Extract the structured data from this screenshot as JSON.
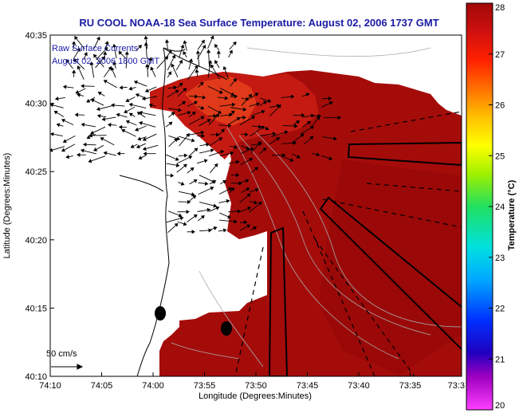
{
  "title": "RU COOL  NOAA-18  Sea Surface Temperature:  August 02, 2006 1737 GMT",
  "annotations": {
    "line1": "Raw Surface Currents",
    "line2": "August 02, 2006 1800 GMT",
    "scale_label": "50 cm/s"
  },
  "colors": {
    "title": "#1a1aa6",
    "land": "#ffffff",
    "sst_main": "#a40c0a",
    "sst_warm": "#c41a12",
    "sst_warmest": "#e03a1a",
    "contour": "#aaaaaa"
  },
  "chart_data": {
    "type": "heatmap",
    "xlabel": "Longitude (Degrees:Minutes)",
    "ylabel": "Latitude (Degrees:Minutes)",
    "x_tick_labels": [
      "74:10",
      "74:05",
      "74:00",
      "73:55",
      "73:50",
      "73:45",
      "73:40",
      "73:35",
      "73:3"
    ],
    "y_tick_labels": [
      "40:35",
      "40:30",
      "40:25",
      "40:20",
      "40:15",
      "40:10"
    ],
    "xlim": [
      "74:10",
      "73:30"
    ],
    "ylim": [
      "40:10",
      "40:35"
    ],
    "colorbar": {
      "label": "Temperature (°C)",
      "min": 20,
      "max": 28,
      "ticks": [
        "28",
        "27",
        "26",
        "25",
        "24",
        "23",
        "22",
        "21",
        "20"
      ]
    },
    "sst_range_shown": [
      26.5,
      28
    ]
  }
}
